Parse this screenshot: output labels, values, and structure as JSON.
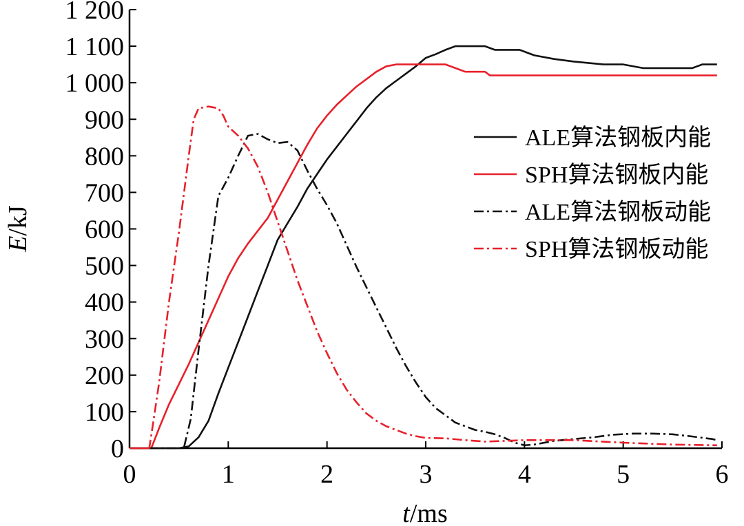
{
  "chart_data": {
    "type": "line",
    "title": "",
    "xlabel": {
      "var": "t",
      "unit": "/ms"
    },
    "ylabel": {
      "var": "E",
      "unit": "/kJ"
    },
    "xlim": [
      0,
      6
    ],
    "ylim": [
      0,
      1200
    ],
    "xticks": [
      {
        "value": 0,
        "label": "0"
      },
      {
        "value": 1,
        "label": "1"
      },
      {
        "value": 2,
        "label": "2"
      },
      {
        "value": 3,
        "label": "3"
      },
      {
        "value": 4,
        "label": "4"
      },
      {
        "value": 5,
        "label": "5"
      },
      {
        "value": 6,
        "label": "6"
      }
    ],
    "yticks": [
      {
        "value": 0,
        "label": "0"
      },
      {
        "value": 100,
        "label": "100"
      },
      {
        "value": 200,
        "label": "200"
      },
      {
        "value": 300,
        "label": "300"
      },
      {
        "value": 400,
        "label": "400"
      },
      {
        "value": 500,
        "label": "500"
      },
      {
        "value": 600,
        "label": "600"
      },
      {
        "value": 700,
        "label": "700"
      },
      {
        "value": 800,
        "label": "800"
      },
      {
        "value": 900,
        "label": "900"
      },
      {
        "value": 1000,
        "label": "1 000"
      },
      {
        "value": 1100,
        "label": "1 100"
      },
      {
        "value": 1200,
        "label": "1 200"
      }
    ],
    "grid": false,
    "legend_position": "right",
    "colors": {
      "black": "#111111",
      "red": "#e8202a"
    },
    "series": [
      {
        "name": "ALE算法钢板内能",
        "color": "#111111",
        "dash": "solid",
        "points": [
          [
            0,
            0
          ],
          [
            0.5,
            0
          ],
          [
            0.6,
            5
          ],
          [
            0.7,
            30
          ],
          [
            0.8,
            75
          ],
          [
            0.9,
            150
          ],
          [
            1.0,
            220
          ],
          [
            1.1,
            290
          ],
          [
            1.2,
            360
          ],
          [
            1.3,
            430
          ],
          [
            1.4,
            500
          ],
          [
            1.5,
            570
          ],
          [
            1.6,
            615
          ],
          [
            1.7,
            660
          ],
          [
            1.8,
            710
          ],
          [
            1.9,
            750
          ],
          [
            2.0,
            790
          ],
          [
            2.1,
            825
          ],
          [
            2.2,
            860
          ],
          [
            2.3,
            895
          ],
          [
            2.4,
            930
          ],
          [
            2.5,
            960
          ],
          [
            2.6,
            985
          ],
          [
            2.7,
            1005
          ],
          [
            2.8,
            1025
          ],
          [
            2.9,
            1045
          ],
          [
            3.0,
            1068
          ],
          [
            3.1,
            1078
          ],
          [
            3.2,
            1090
          ],
          [
            3.3,
            1100
          ],
          [
            3.6,
            1100
          ],
          [
            3.7,
            1090
          ],
          [
            3.95,
            1090
          ],
          [
            4.1,
            1075
          ],
          [
            4.3,
            1065
          ],
          [
            4.5,
            1058
          ],
          [
            4.8,
            1050
          ],
          [
            5.0,
            1050
          ],
          [
            5.2,
            1040
          ],
          [
            5.7,
            1040
          ],
          [
            5.8,
            1050
          ],
          [
            5.95,
            1050
          ]
        ]
      },
      {
        "name": "SPH算法钢板内能",
        "color": "#e8202a",
        "dash": "solid",
        "points": [
          [
            0,
            0
          ],
          [
            0.22,
            0
          ],
          [
            0.25,
            20
          ],
          [
            0.3,
            55
          ],
          [
            0.4,
            120
          ],
          [
            0.5,
            175
          ],
          [
            0.6,
            230
          ],
          [
            0.7,
            290
          ],
          [
            0.8,
            350
          ],
          [
            0.9,
            410
          ],
          [
            1.0,
            470
          ],
          [
            1.1,
            520
          ],
          [
            1.2,
            560
          ],
          [
            1.3,
            595
          ],
          [
            1.4,
            630
          ],
          [
            1.5,
            680
          ],
          [
            1.6,
            730
          ],
          [
            1.7,
            780
          ],
          [
            1.8,
            830
          ],
          [
            1.9,
            875
          ],
          [
            2.0,
            910
          ],
          [
            2.1,
            940
          ],
          [
            2.2,
            965
          ],
          [
            2.3,
            990
          ],
          [
            2.4,
            1010
          ],
          [
            2.5,
            1030
          ],
          [
            2.6,
            1045
          ],
          [
            2.7,
            1050
          ],
          [
            3.2,
            1050
          ],
          [
            3.3,
            1040
          ],
          [
            3.4,
            1030
          ],
          [
            3.6,
            1030
          ],
          [
            3.65,
            1020
          ],
          [
            5.95,
            1020
          ]
        ]
      },
      {
        "name": "ALE算法钢板动能",
        "color": "#111111",
        "dash": "dashdot",
        "points": [
          [
            0,
            0
          ],
          [
            0.55,
            0
          ],
          [
            0.62,
            80
          ],
          [
            0.7,
            270
          ],
          [
            0.8,
            500
          ],
          [
            0.9,
            690
          ],
          [
            1.0,
            740
          ],
          [
            1.1,
            800
          ],
          [
            1.2,
            855
          ],
          [
            1.3,
            860
          ],
          [
            1.4,
            845
          ],
          [
            1.5,
            835
          ],
          [
            1.6,
            838
          ],
          [
            1.7,
            815
          ],
          [
            1.8,
            760
          ],
          [
            1.9,
            710
          ],
          [
            2.0,
            665
          ],
          [
            2.1,
            615
          ],
          [
            2.2,
            555
          ],
          [
            2.3,
            495
          ],
          [
            2.4,
            440
          ],
          [
            2.5,
            385
          ],
          [
            2.6,
            330
          ],
          [
            2.7,
            275
          ],
          [
            2.8,
            225
          ],
          [
            2.9,
            180
          ],
          [
            3.0,
            140
          ],
          [
            3.1,
            110
          ],
          [
            3.2,
            90
          ],
          [
            3.3,
            70
          ],
          [
            3.4,
            60
          ],
          [
            3.5,
            50
          ],
          [
            3.6,
            45
          ],
          [
            3.7,
            38
          ],
          [
            3.8,
            28
          ],
          [
            3.9,
            15
          ],
          [
            4.0,
            8
          ],
          [
            4.1,
            10
          ],
          [
            4.3,
            20
          ],
          [
            4.5,
            25
          ],
          [
            4.7,
            30
          ],
          [
            4.9,
            37
          ],
          [
            5.1,
            40
          ],
          [
            5.3,
            40
          ],
          [
            5.5,
            38
          ],
          [
            5.7,
            32
          ],
          [
            5.9,
            25
          ],
          [
            5.95,
            22
          ]
        ]
      },
      {
        "name": "SPH算法钢板动能",
        "color": "#e8202a",
        "dash": "dashdot",
        "points": [
          [
            0,
            0
          ],
          [
            0.2,
            0
          ],
          [
            0.24,
            70
          ],
          [
            0.3,
            180
          ],
          [
            0.4,
            400
          ],
          [
            0.5,
            590
          ],
          [
            0.6,
            800
          ],
          [
            0.65,
            900
          ],
          [
            0.7,
            930
          ],
          [
            0.8,
            935
          ],
          [
            0.9,
            930
          ],
          [
            0.95,
            910
          ],
          [
            1.0,
            880
          ],
          [
            1.1,
            855
          ],
          [
            1.2,
            820
          ],
          [
            1.3,
            770
          ],
          [
            1.4,
            700
          ],
          [
            1.5,
            620
          ],
          [
            1.6,
            540
          ],
          [
            1.7,
            460
          ],
          [
            1.8,
            390
          ],
          [
            1.9,
            320
          ],
          [
            2.0,
            260
          ],
          [
            2.1,
            205
          ],
          [
            2.2,
            160
          ],
          [
            2.3,
            125
          ],
          [
            2.4,
            95
          ],
          [
            2.5,
            75
          ],
          [
            2.6,
            60
          ],
          [
            2.7,
            50
          ],
          [
            2.8,
            40
          ],
          [
            2.9,
            33
          ],
          [
            3.0,
            28
          ],
          [
            3.2,
            27
          ],
          [
            3.4,
            22
          ],
          [
            3.6,
            18
          ],
          [
            3.8,
            20
          ],
          [
            4.0,
            22
          ],
          [
            4.5,
            22
          ],
          [
            5.0,
            15
          ],
          [
            5.5,
            10
          ],
          [
            5.95,
            8
          ]
        ]
      }
    ]
  }
}
